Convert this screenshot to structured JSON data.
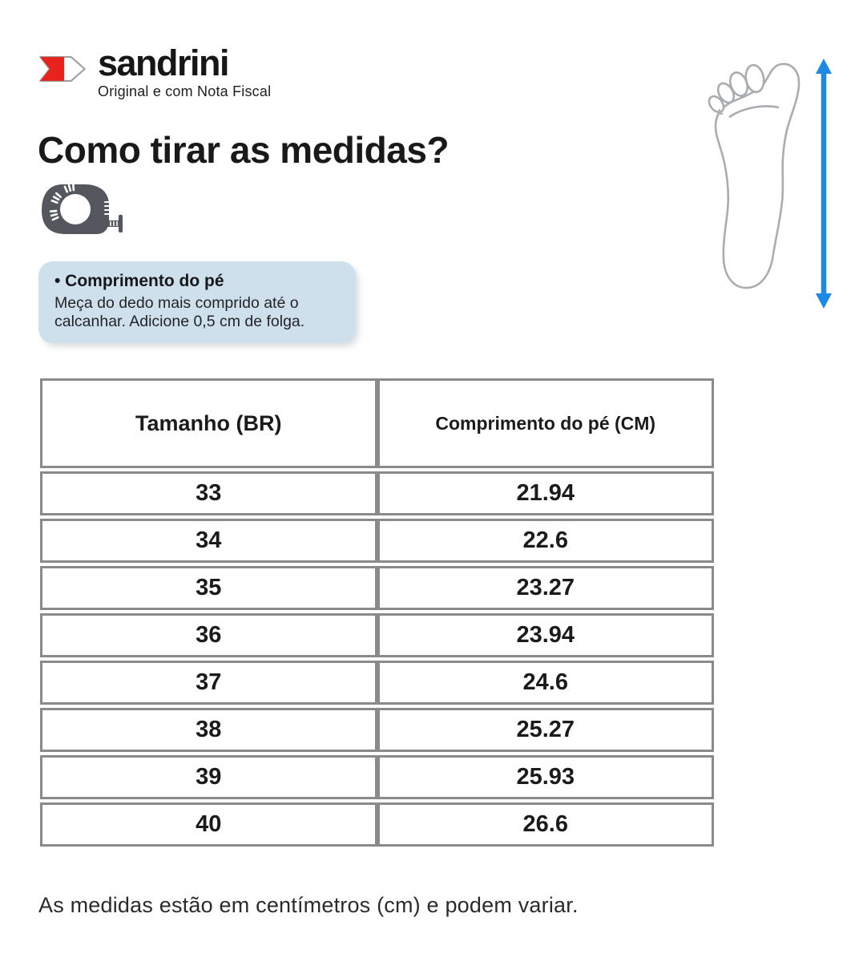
{
  "brand": {
    "name": "sandrini",
    "tagline": "Original e com Nota Fiscal",
    "logo_color": "#e8231d"
  },
  "heading": "Como tirar as medidas?",
  "tip": {
    "title": "• Comprimento do pé",
    "line1": "Meça do dedo mais comprido até o",
    "line2": "calcanhar. Adicione 0,5 cm de folga.",
    "bg_color": "#cfe0ed"
  },
  "figure": {
    "arrow_color": "#1e88e5",
    "foot_outline_color": "#a9acb0"
  },
  "table": {
    "border_color": "#8a8a8a",
    "columns": [
      "Tamanho (BR)",
      "Comprimento do pé (CM)"
    ],
    "rows": [
      [
        "33",
        "21.94"
      ],
      [
        "34",
        "22.6"
      ],
      [
        "35",
        "23.27"
      ],
      [
        "36",
        "23.94"
      ],
      [
        "37",
        "24.6"
      ],
      [
        "38",
        "25.27"
      ],
      [
        "39",
        "25.93"
      ],
      [
        "40",
        "26.6"
      ]
    ]
  },
  "footer": "As medidas estão em centímetros (cm) e podem variar."
}
